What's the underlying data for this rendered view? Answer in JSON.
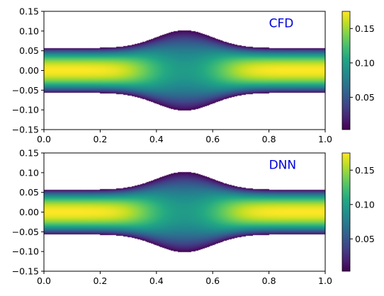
{
  "chart_data": [
    {
      "type": "heatmap",
      "annotation": "CFD",
      "annotation_color": "#0000dd",
      "colormap": "viridis",
      "title": "",
      "xlabel": "",
      "ylabel": "",
      "xlim": [
        0.0,
        1.0
      ],
      "ylim": [
        -0.15,
        0.15
      ],
      "x_ticks": [
        "0.0",
        "0.2",
        "0.4",
        "0.6",
        "0.8",
        "1.0"
      ],
      "y_ticks": [
        "0.15",
        "0.10",
        "0.05",
        "0.00",
        "−0.05",
        "−0.10",
        "−0.15"
      ],
      "grid": false,
      "domain": {
        "inlet_half_width": 0.057,
        "bulge_half_width": 0.102,
        "bulge_center_x": 0.5,
        "bulge_sigma": 0.1
      },
      "field": {
        "min": 0.003,
        "max": 0.175,
        "inlet_centerline_max": 0.175,
        "bulge_center_value": 0.105
      },
      "colorbar": {
        "range": [
          0.003,
          0.175
        ],
        "ticks": [
          "0.05",
          "0.10",
          "0.15"
        ]
      }
    },
    {
      "type": "heatmap",
      "annotation": "DNN",
      "annotation_color": "#0000dd",
      "colormap": "viridis",
      "title": "",
      "xlabel": "",
      "ylabel": "",
      "xlim": [
        0.0,
        1.0
      ],
      "ylim": [
        -0.15,
        0.15
      ],
      "x_ticks": [
        "0.0",
        "0.2",
        "0.4",
        "0.6",
        "0.8",
        "1.0"
      ],
      "y_ticks": [
        "0.15",
        "0.10",
        "0.05",
        "0.00",
        "−0.05",
        "−0.10",
        "−0.15"
      ],
      "grid": false,
      "domain": {
        "inlet_half_width": 0.057,
        "bulge_half_width": 0.102,
        "bulge_center_x": 0.5,
        "bulge_sigma": 0.1
      },
      "field": {
        "min": 0.003,
        "max": 0.175,
        "inlet_centerline_max": 0.175,
        "bulge_center_value": 0.105
      },
      "colorbar": {
        "range": [
          0.003,
          0.175
        ],
        "ticks": [
          "0.05",
          "0.10",
          "0.15"
        ]
      }
    }
  ]
}
